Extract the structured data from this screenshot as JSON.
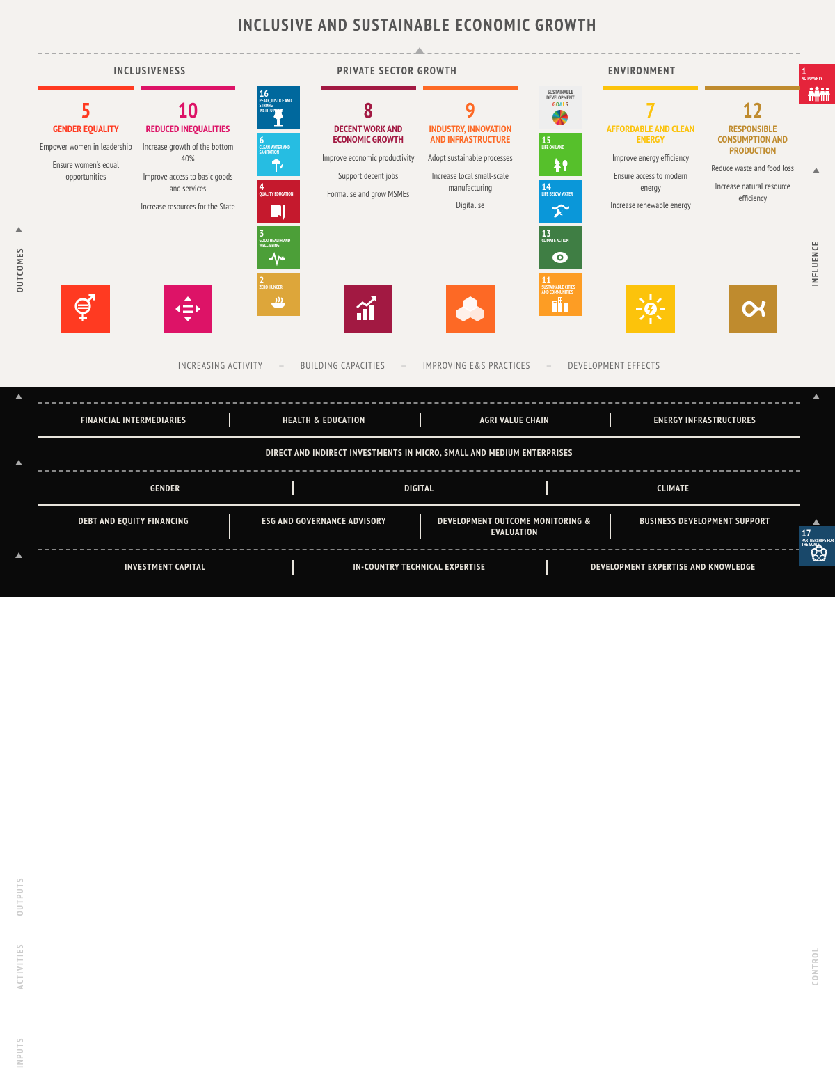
{
  "title": "INCLUSIVE AND SUSTAINABLE ECONOMIC GROWTH",
  "vlabels": {
    "outcomes": "OUTCOMES",
    "influence": "INFLUENCE",
    "outputs": "OUTPUTS",
    "activities": "ACTIVITIES",
    "inputs": "INPUTS",
    "control": "CONTROL"
  },
  "section_headers": [
    "INCLUSIVENESS",
    "PRIVATE SECTOR GROWTH",
    "ENVIRONMENT"
  ],
  "columns": [
    {
      "num": "5",
      "title": "GENDER EQUALITY",
      "color": "#ff3a21",
      "bar_color": "#ff3a21",
      "points": [
        "Empower women in leadership",
        "Ensure women's equal opportunities"
      ]
    },
    {
      "num": "10",
      "title": "REDUCED INEQUALITIES",
      "color": "#dd1367",
      "bar_color": "#dd1367",
      "points": [
        "Increase growth of the bottom 40%",
        "Improve access to basic goods and services",
        "Increase resources for the State"
      ]
    },
    {
      "num": "8",
      "title": "DECENT WORK AND ECONOMIC GROWTH",
      "color": "#a21942",
      "bar_color": "#a21942",
      "points": [
        "Improve economic productivity",
        "Support decent jobs",
        "Formalise and grow MSMEs"
      ]
    },
    {
      "num": "9",
      "title": "INDUSTRY, INNOVATION AND INFRASTRUCTURE",
      "color": "#fd6925",
      "bar_color": "#fd6925",
      "points": [
        "Adopt sustainable processes",
        "Increase local small-scale manufacturing",
        "Digitalise"
      ]
    },
    {
      "num": "7",
      "title": "AFFORDABLE AND CLEAN ENERGY",
      "color": "#fcc30b",
      "bar_color": "#fcc30b",
      "points": [
        "Improve energy efficiency",
        "Ensure access to modern energy",
        "Increase renewable energy"
      ]
    },
    {
      "num": "12",
      "title": "RESPONSIBLE CONSUMPTION AND PRODUCTION",
      "color": "#bf8b2e",
      "bar_color": "#bf8b2e",
      "points": [
        "Reduce waste and food loss",
        "Increase natural resource efficiency"
      ]
    }
  ],
  "sdg_stack_a": [
    {
      "n": "16",
      "label": "PEACE, JUSTICE AND STRONG INSTITUTIONS",
      "color": "#00689d"
    },
    {
      "n": "6",
      "label": "CLEAN WATER AND SANITATION",
      "color": "#26bde2"
    },
    {
      "n": "4",
      "label": "QUALITY EDUCATION",
      "color": "#c5192d"
    },
    {
      "n": "3",
      "label": "GOOD HEALTH AND WELL-BEING",
      "color": "#4c9f38"
    },
    {
      "n": "2",
      "label": "ZERO HUNGER",
      "color": "#dda63a"
    }
  ],
  "sdg_stack_b": [
    {
      "logo": true,
      "top": "SUSTAINABLE DEVELOPMENT",
      "bottom": "GOALS"
    },
    {
      "n": "15",
      "label": "LIFE ON LAND",
      "color": "#56c02b"
    },
    {
      "n": "14",
      "label": "LIFE BELOW WATER",
      "color": "#0a97d9"
    },
    {
      "n": "13",
      "label": "CLIMATE ACTION",
      "color": "#3f7e44"
    },
    {
      "n": "11",
      "label": "SUSTAINABLE CITIES AND COMMUNITIES",
      "color": "#fd9d24"
    }
  ],
  "sdg_badge_top": {
    "n": "1",
    "label": "NO POVERTY",
    "color": "#e5243b"
  },
  "sdg_badge_bottom": {
    "n": "17",
    "label": "PARTNERSHIPS FOR THE GOALS",
    "color": "#19486a"
  },
  "mid_labels": [
    "INCREASING ACTIVITY",
    "BUILDING CAPACITIES",
    "IMPROVING E&S PRACTICES",
    "DEVELOPMENT EFFECTS"
  ],
  "dark_rows": {
    "outputs1": [
      "FINANCIAL INTERMEDIARIES",
      "HEALTH & EDUCATION",
      "AGRI VALUE CHAIN",
      "ENERGY INFRASTRUCTURES"
    ],
    "outputs2": [
      "DIRECT AND INDIRECT INVESTMENTS IN MICRO, SMALL AND MEDIUM ENTERPRISES"
    ],
    "activities1": [
      "GENDER",
      "DIGITAL",
      "CLIMATE"
    ],
    "activities2": [
      "DEBT AND EQUITY FINANCING",
      "ESG AND GOVERNANCE ADVISORY",
      "DEVELOPMENT OUTCOME MONITORING & EVALUATION",
      "BUSINESS DEVELOPMENT SUPPORT"
    ],
    "inputs": [
      "INVESTMENT CAPITAL",
      "IN-COUNTRY TECHNICAL EXPERTISE",
      "DEVELOPMENT EXPERTISE AND KNOWLEDGE"
    ]
  },
  "sdg_icon_colors": {
    "white": "#ffffff"
  }
}
